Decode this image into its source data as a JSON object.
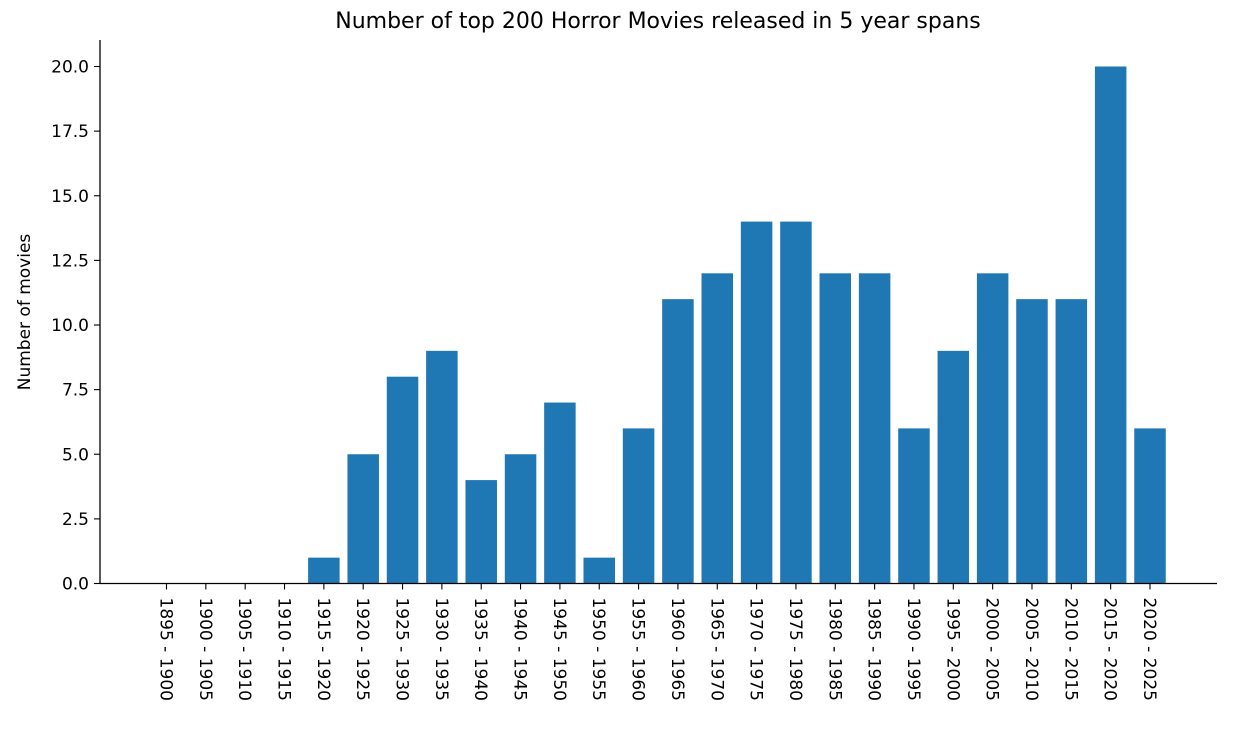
{
  "chart_data": {
    "type": "bar",
    "title": "Number of top 200 Horror Movies released in 5 year spans",
    "xlabel": "",
    "ylabel": "Number of movies",
    "categories": [
      "1895 - 1900",
      "1900 - 1905",
      "1905 - 1910",
      "1910 - 1915",
      "1915 - 1920",
      "1920 - 1925",
      "1925 - 1930",
      "1930 - 1935",
      "1935 - 1940",
      "1940 - 1945",
      "1945 - 1950",
      "1950 - 1955",
      "1955 - 1960",
      "1960 - 1965",
      "1965 - 1970",
      "1970 - 1975",
      "1975 - 1980",
      "1980 - 1985",
      "1985 - 1990",
      "1990 - 1995",
      "1995 - 2000",
      "2000 - 2005",
      "2005 - 2010",
      "2010 - 2015",
      "2015 - 2020",
      "2020 - 2025"
    ],
    "values": [
      0,
      0,
      0,
      0,
      1,
      5,
      8,
      9,
      4,
      5,
      7,
      1,
      6,
      11,
      12,
      14,
      14,
      12,
      12,
      6,
      9,
      12,
      11,
      11,
      20,
      6
    ],
    "ylim": [
      0,
      21
    ],
    "yticks": [
      "0.0",
      "2.5",
      "5.0",
      "7.5",
      "10.0",
      "12.5",
      "15.0",
      "17.5",
      "20.0"
    ],
    "bar_color": "#1f77b4",
    "grid": false,
    "legend": "none"
  }
}
